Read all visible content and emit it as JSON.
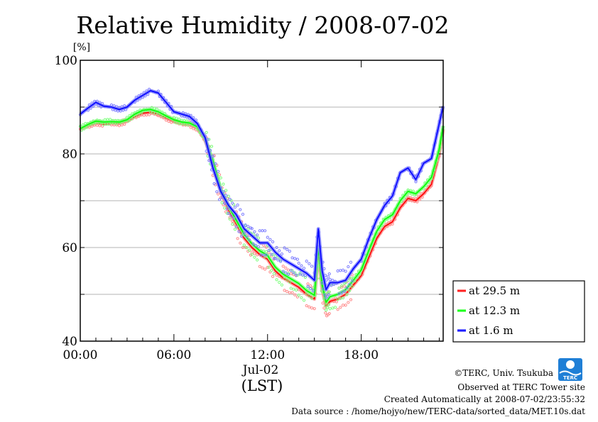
{
  "chart_data": {
    "type": "line",
    "title": "Relative Humidity / 2008-07-02",
    "y_unit": "[%]",
    "ylim": [
      40,
      100
    ],
    "y_ticks": [
      "40",
      "60",
      "80",
      "100"
    ],
    "y_tick_values": [
      40,
      60,
      80,
      100
    ],
    "xlim": [
      0,
      23.25
    ],
    "x_ticks": [
      "00:00",
      "06:00",
      "12:00",
      "18:00"
    ],
    "x_tick_values": [
      0,
      6,
      12,
      18
    ],
    "x_date_label": "Jul-02",
    "x_axis_label": "(LST)",
    "grid": true,
    "legend_position": "right",
    "x_hours": [
      0,
      0.5,
      1,
      1.5,
      2,
      2.5,
      3,
      3.5,
      4,
      4.5,
      5,
      5.5,
      6,
      6.5,
      7,
      7.5,
      8,
      8.5,
      9,
      9.5,
      10,
      10.5,
      11,
      11.5,
      12,
      12.5,
      13,
      13.5,
      14,
      14.5,
      15,
      15.25,
      15.5,
      15.75,
      16,
      16.5,
      17,
      17.5,
      18,
      18.5,
      19,
      19.5,
      20,
      20.5,
      21,
      21.5,
      22,
      22.5,
      23,
      23.25
    ],
    "series": [
      {
        "name": "at 29.5 m",
        "color": "#ff0000",
        "values": [
          85.3,
          86.0,
          86.6,
          86.4,
          86.6,
          86.5,
          87.0,
          88.0,
          88.7,
          88.9,
          88.5,
          87.7,
          87.0,
          86.5,
          86.3,
          85.5,
          83.0,
          78.0,
          72.0,
          68.0,
          65.0,
          62.0,
          60.0,
          58.5,
          57.5,
          55.0,
          53.5,
          52.5,
          51.5,
          50.0,
          49.0,
          59.0,
          51.0,
          47.5,
          48.5,
          49.0,
          50.0,
          52.0,
          54.0,
          58.0,
          62.0,
          64.5,
          65.5,
          68.5,
          70.5,
          70.0,
          71.5,
          73.5,
          80.0,
          85.3
        ]
      },
      {
        "name": "at 12.3 m",
        "color": "#00ff00",
        "values": [
          85.4,
          86.3,
          87.0,
          86.8,
          86.9,
          86.8,
          87.3,
          88.5,
          89.3,
          89.5,
          89.0,
          88.1,
          87.3,
          86.8,
          86.6,
          85.8,
          83.3,
          78.5,
          72.5,
          68.8,
          65.8,
          62.8,
          60.8,
          59.3,
          58.3,
          55.8,
          54.3,
          53.3,
          52.3,
          50.8,
          49.8,
          60.0,
          52.0,
          48.3,
          49.5,
          50.0,
          51.0,
          53.0,
          55.2,
          59.5,
          63.5,
          66.0,
          67.0,
          70.0,
          72.0,
          71.5,
          73.0,
          75.0,
          81.0,
          86.0
        ]
      },
      {
        "name": "at 1.6 m",
        "color": "#0000ff",
        "values": [
          88.5,
          89.8,
          91.0,
          90.2,
          90.0,
          89.5,
          90.0,
          91.5,
          92.5,
          93.5,
          93.0,
          91.0,
          89.0,
          88.5,
          88.0,
          86.5,
          83.5,
          77.0,
          72.0,
          69.0,
          67.0,
          64.0,
          62.5,
          61.0,
          61.0,
          59.0,
          57.5,
          56.5,
          55.5,
          54.5,
          53.0,
          64.0,
          55.0,
          51.0,
          52.5,
          52.5,
          53.0,
          55.5,
          57.5,
          62.0,
          66.0,
          69.0,
          71.0,
          76.0,
          77.0,
          74.5,
          78.0,
          79.0,
          86.5,
          90.2
        ]
      }
    ]
  },
  "credits": {
    "copyright": "©TERC, Univ. Tsukuba",
    "observed": "Observed at TERC Tower site",
    "created": "Created Automatically at 2008-07-02/23:55:32",
    "source": "Data source : /home/hojyo/new/TERC-data/sorted_data/MET.10s.dat",
    "logo_text": "TERC"
  }
}
